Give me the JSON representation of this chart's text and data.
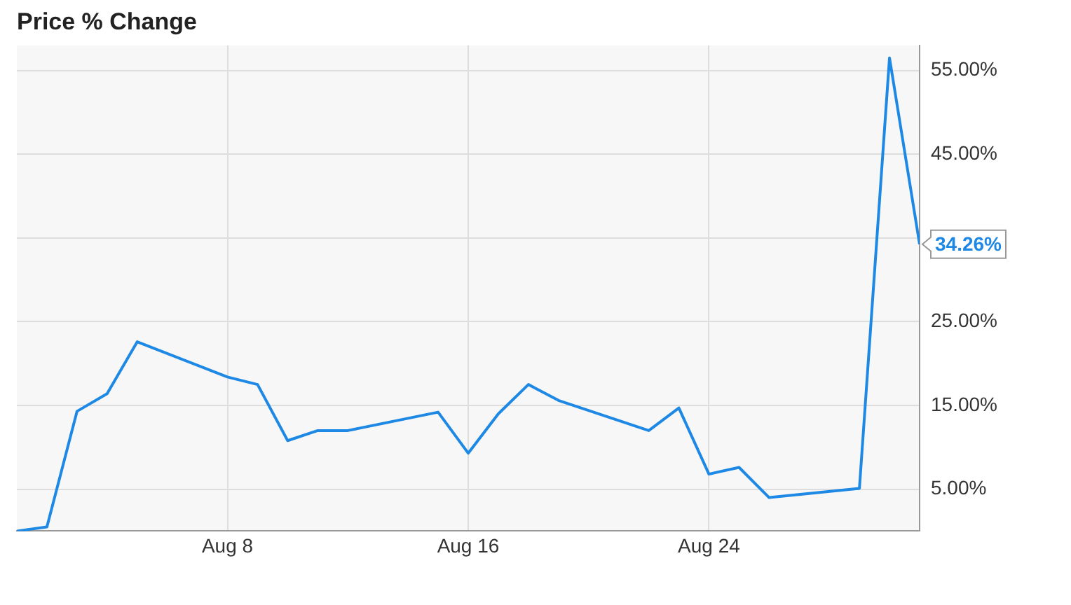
{
  "chart_data": {
    "type": "line",
    "title": "Price % Change",
    "x": [
      "--08-01",
      "--08-02",
      "--08-03",
      "--08-04",
      "--08-05",
      "--08-08",
      "--08-09",
      "--08-10",
      "--08-11",
      "--08-12",
      "--08-15",
      "--08-16",
      "--08-17",
      "--08-18",
      "--08-19",
      "--08-22",
      "--08-23",
      "--08-24",
      "--08-25",
      "--08-26",
      "--08-29",
      "--08-30",
      "--08-31"
    ],
    "series": [
      {
        "color": "#1e88e5",
        "values": [
          0,
          0.5,
          14.3,
          16.4,
          22.6,
          18.4,
          17.5,
          10.8,
          12.0,
          12.0,
          14.2,
          9.3,
          14.0,
          17.5,
          15.6,
          12.0,
          14.7,
          6.8,
          7.6,
          4.0,
          5.1,
          56.5,
          34.26
        ]
      }
    ],
    "xlim": [
      "--08-01",
      "--08-31"
    ],
    "xticks": [
      {
        "value": "--08-08",
        "label": "Aug 8"
      },
      {
        "value": "--08-16",
        "label": "Aug 16"
      },
      {
        "value": "--08-24",
        "label": "Aug 24"
      }
    ],
    "ylim": [
      0,
      58
    ],
    "yticks": [
      {
        "value": 5,
        "label": "5.00%"
      },
      {
        "value": 15,
        "label": "15.00%"
      },
      {
        "value": 25,
        "label": "25.00%"
      },
      {
        "value": 35,
        "label": null
      },
      {
        "value": 45,
        "label": "45.00%"
      },
      {
        "value": 55,
        "label": "55.00%"
      }
    ],
    "annotations": [
      {
        "text": "34.26%",
        "x": "--08-31",
        "y": 34.26
      }
    ],
    "grid": true,
    "legend": false,
    "marker": "none",
    "line_style": "solid"
  }
}
